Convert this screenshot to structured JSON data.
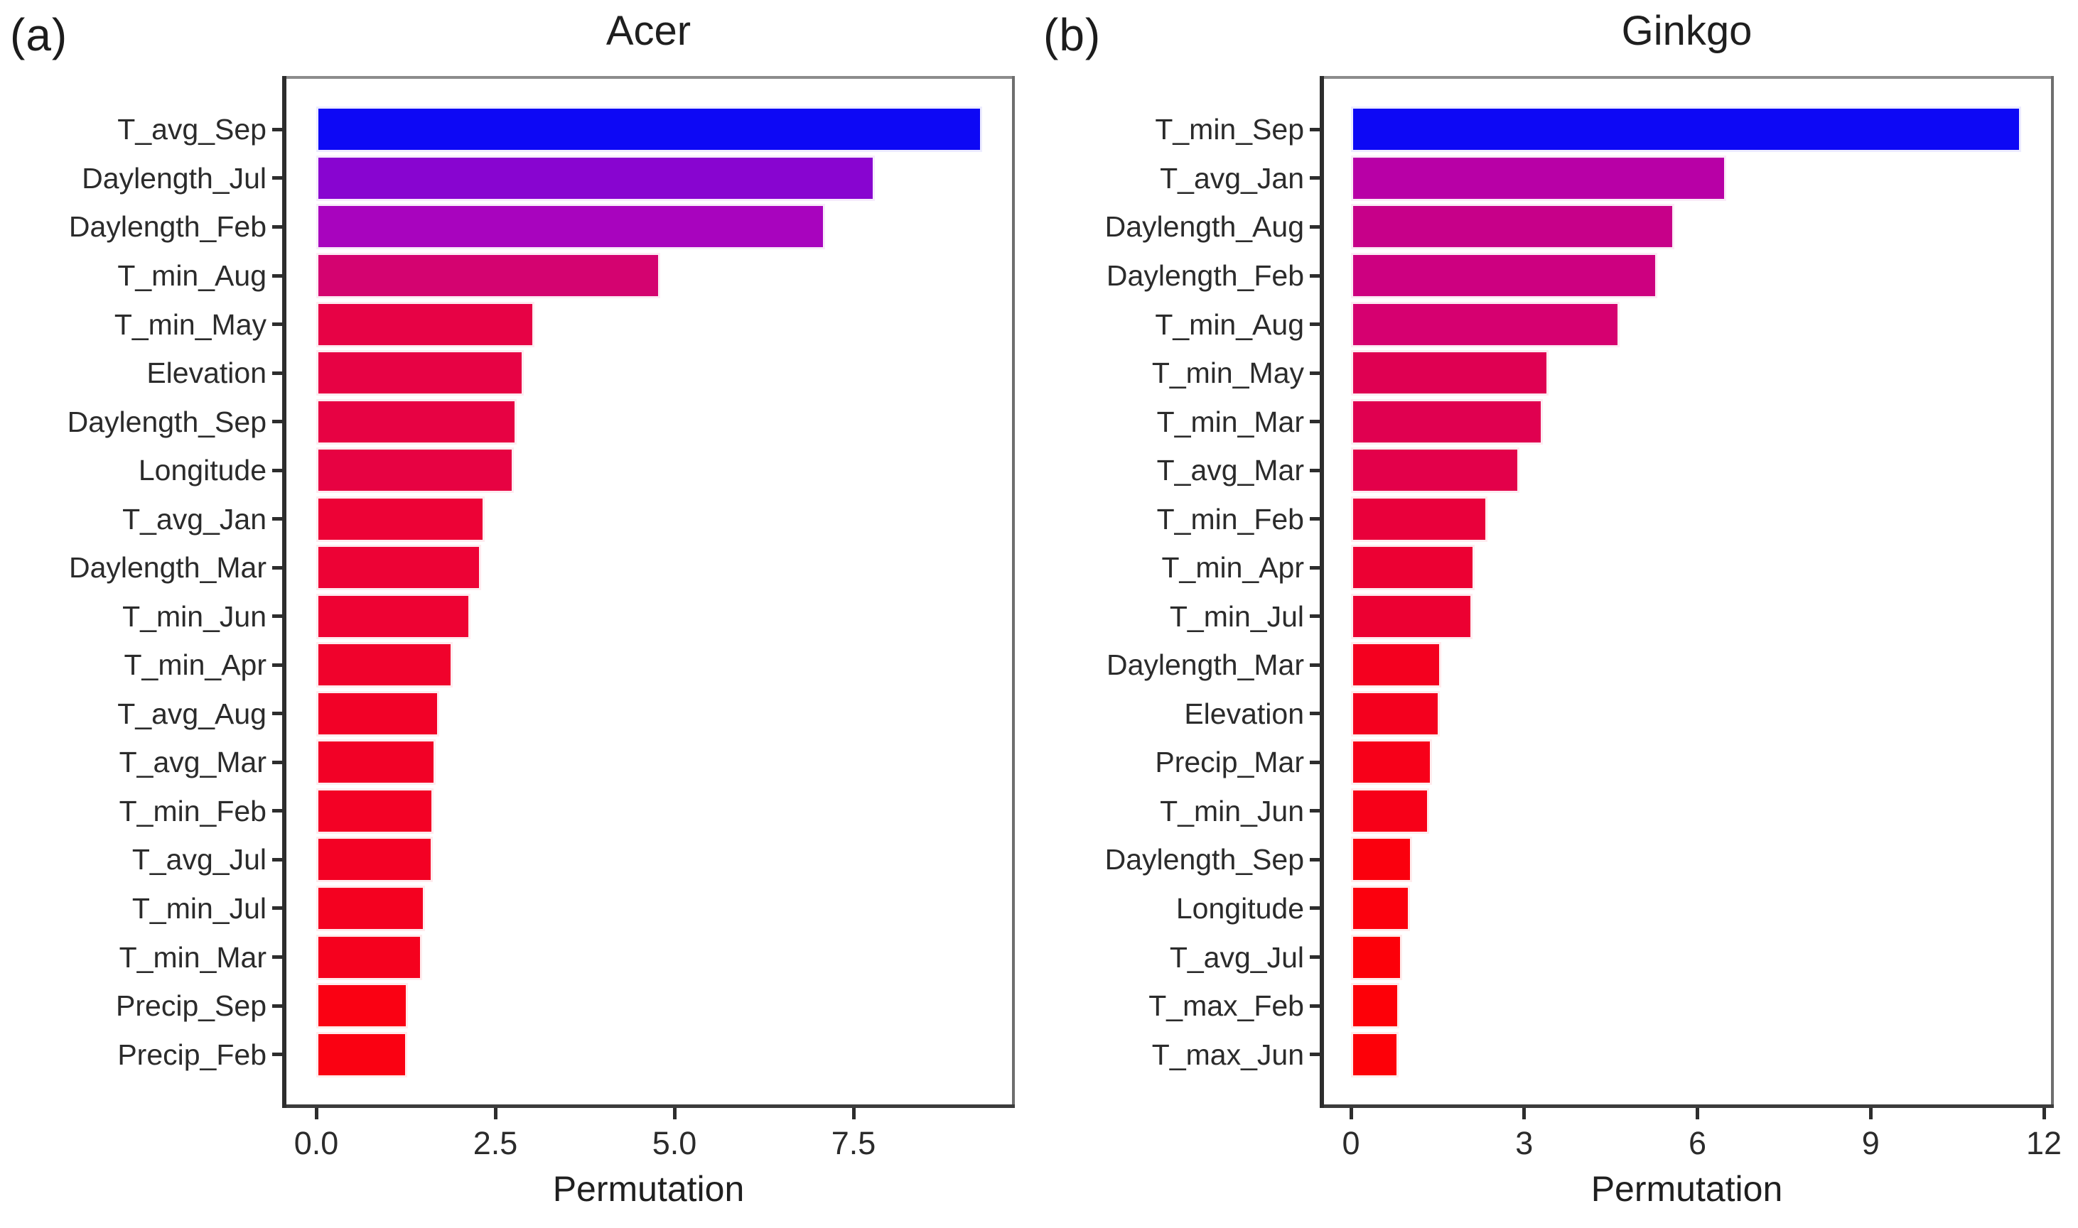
{
  "chart_data": [
    {
      "type": "bar",
      "orientation": "horizontal",
      "panel_tag": "(a)",
      "title": "Acer",
      "xlabel": "Permutation",
      "ylabel": "",
      "grid": false,
      "legend": "none",
      "xlim": [
        -0.47,
        9.75
      ],
      "x_ticks": [
        {
          "value": 0,
          "label": "0.0"
        },
        {
          "value": 2.5,
          "label": "2.5"
        },
        {
          "value": 5,
          "label": "5.0"
        },
        {
          "value": 7.5,
          "label": "7.5"
        }
      ],
      "color_scale": {
        "low_value_color": "#FA0112",
        "high_value_color": "#0D08F5"
      },
      "bars": [
        {
          "label": "T_avg_Sep",
          "value": 9.3,
          "color": "#0D08F5"
        },
        {
          "label": "Daylength_Jul",
          "value": 7.8,
          "color": "#8805D0"
        },
        {
          "label": "Daylength_Feb",
          "value": 7.1,
          "color": "#A804BE"
        },
        {
          "label": "T_min_Aug",
          "value": 4.8,
          "color": "#D40370"
        },
        {
          "label": "T_min_May",
          "value": 3.05,
          "color": "#E70245"
        },
        {
          "label": "Elevation",
          "value": 2.9,
          "color": "#E70244"
        },
        {
          "label": "Daylength_Sep",
          "value": 2.8,
          "color": "#E70243"
        },
        {
          "label": "Longitude",
          "value": 2.76,
          "color": "#E70242"
        },
        {
          "label": "T_avg_Jan",
          "value": 2.35,
          "color": "#ED0236"
        },
        {
          "label": "Daylength_Mar",
          "value": 2.3,
          "color": "#ED0235"
        },
        {
          "label": "T_min_Jun",
          "value": 2.15,
          "color": "#EE0233"
        },
        {
          "label": "T_min_Apr",
          "value": 1.9,
          "color": "#F0022C"
        },
        {
          "label": "T_avg_Aug",
          "value": 1.72,
          "color": "#F20127"
        },
        {
          "label": "T_avg_Mar",
          "value": 1.67,
          "color": "#F20126"
        },
        {
          "label": "T_min_Feb",
          "value": 1.64,
          "color": "#F30125"
        },
        {
          "label": "T_avg_Jul",
          "value": 1.63,
          "color": "#F30124"
        },
        {
          "label": "T_min_Jul",
          "value": 1.52,
          "color": "#F40120"
        },
        {
          "label": "T_min_Mar",
          "value": 1.48,
          "color": "#F5011E"
        },
        {
          "label": "Precip_Sep",
          "value": 1.28,
          "color": "#FA0113"
        },
        {
          "label": "Precip_Feb",
          "value": 1.27,
          "color": "#FA0112"
        }
      ]
    },
    {
      "type": "bar",
      "orientation": "horizontal",
      "panel_tag": "(b)",
      "title": "Ginkgo",
      "xlabel": "Permutation",
      "ylabel": "",
      "grid": false,
      "legend": "none",
      "xlim": [
        -0.54,
        12.17
      ],
      "x_ticks": [
        {
          "value": 0,
          "label": "0"
        },
        {
          "value": 3,
          "label": "3"
        },
        {
          "value": 6,
          "label": "6"
        },
        {
          "value": 9,
          "label": "9"
        },
        {
          "value": 12,
          "label": "12"
        }
      ],
      "color_scale": {
        "low_value_color": "#FD0008",
        "high_value_color": "#0D08F5"
      },
      "bars": [
        {
          "label": "T_min_Sep",
          "value": 11.6,
          "color": "#0D08F5"
        },
        {
          "label": "T_avg_Jan",
          "value": 6.5,
          "color": "#B800A6"
        },
        {
          "label": "Daylength_Aug",
          "value": 5.6,
          "color": "#C70089"
        },
        {
          "label": "Daylength_Feb",
          "value": 5.3,
          "color": "#CD0080"
        },
        {
          "label": "T_min_Aug",
          "value": 4.65,
          "color": "#D60070"
        },
        {
          "label": "T_min_May",
          "value": 3.42,
          "color": "#DF0052"
        },
        {
          "label": "T_min_Mar",
          "value": 3.32,
          "color": "#E00050"
        },
        {
          "label": "T_avg_Mar",
          "value": 2.92,
          "color": "#E3004A"
        },
        {
          "label": "T_min_Feb",
          "value": 2.36,
          "color": "#E9003B"
        },
        {
          "label": "T_min_Apr",
          "value": 2.14,
          "color": "#EC0033"
        },
        {
          "label": "T_min_Jul",
          "value": 2.11,
          "color": "#EC0032"
        },
        {
          "label": "Daylength_Mar",
          "value": 1.56,
          "color": "#F4001F"
        },
        {
          "label": "Elevation",
          "value": 1.54,
          "color": "#F4001E"
        },
        {
          "label": "Precip_Mar",
          "value": 1.4,
          "color": "#F70019"
        },
        {
          "label": "T_min_Jun",
          "value": 1.35,
          "color": "#F70018"
        },
        {
          "label": "Daylength_Sep",
          "value": 1.06,
          "color": "#FA000E"
        },
        {
          "label": "Longitude",
          "value": 1.02,
          "color": "#FB000D"
        },
        {
          "label": "T_avg_Jul",
          "value": 0.88,
          "color": "#FC0009"
        },
        {
          "label": "T_max_Feb",
          "value": 0.84,
          "color": "#FD0008"
        },
        {
          "label": "T_max_Jun",
          "value": 0.83,
          "color": "#FD0008"
        }
      ]
    }
  ]
}
